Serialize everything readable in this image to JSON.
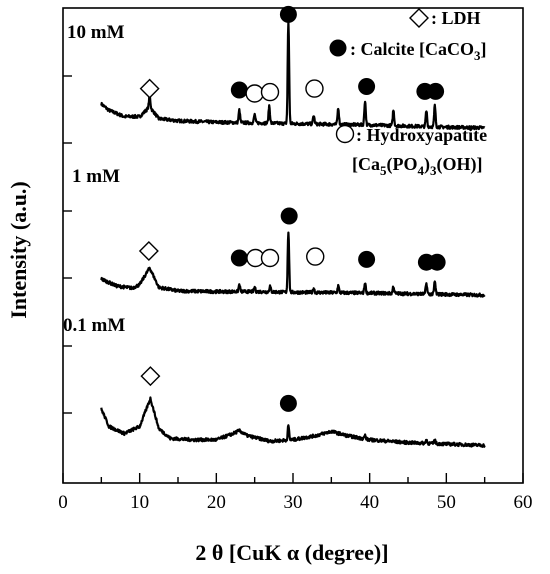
{
  "chart_data": {
    "type": "line",
    "xlabel": "2 θ  [CuK α  (degree)]",
    "ylabel": "Intensity (a.u.)",
    "xlim": [
      0,
      60
    ],
    "x_ticks": [
      "0",
      "10",
      "20",
      "30",
      "40",
      "50",
      "60"
    ],
    "grid": false,
    "legend_position": "top-right, inside plot",
    "legend": {
      "ldh": {
        "symbol": "diamond-open",
        "text": ": LDH"
      },
      "calcite": {
        "symbol": "circle-filled",
        "text": ": Calcite [CaCO",
        "sub": "3",
        "end": "]"
      },
      "hap": {
        "symbol": "circle-open",
        "text": ": Hydroxyapatite"
      },
      "hap_formula": {
        "p1": "[Ca",
        "s1": "5",
        "p2": "(PO",
        "s2": "4",
        "p3": ")",
        "s3": "3",
        "p4": "(OH)]"
      }
    },
    "series": [
      {
        "name": "10 mM",
        "baseline": [
          [
            5,
            0.3
          ],
          [
            6,
            0.21
          ],
          [
            8,
            0.12
          ],
          [
            10,
            0.12
          ],
          [
            11.3,
            0.26
          ],
          [
            12.5,
            0.09
          ],
          [
            15,
            0.06
          ],
          [
            20,
            0.04
          ],
          [
            25,
            0.03
          ],
          [
            30,
            0.02
          ],
          [
            40,
            0.0
          ],
          [
            50,
            -0.03
          ],
          [
            55,
            -0.04
          ]
        ],
        "peaks": [
          [
            11.3,
            0.16
          ],
          [
            23.0,
            0.18
          ],
          [
            25.0,
            0.12
          ],
          [
            26.9,
            0.25
          ],
          [
            29.4,
            1.45
          ],
          [
            32.7,
            0.12
          ],
          [
            35.9,
            0.24
          ],
          [
            39.4,
            0.35
          ],
          [
            43.1,
            0.22
          ],
          [
            47.4,
            0.22
          ],
          [
            48.5,
            0.3
          ]
        ],
        "markers": [
          [
            "diamond-open",
            11.3,
            0.52
          ],
          [
            "circle-filled",
            23.0,
            0.5
          ],
          [
            "circle-open",
            25.0,
            0.45
          ],
          [
            "circle-open",
            27.0,
            0.47
          ],
          [
            "circle-filled",
            29.4,
            1.58
          ],
          [
            "circle-open",
            32.8,
            0.52
          ],
          [
            "circle-filled",
            39.6,
            0.55
          ],
          [
            "circle-filled",
            47.2,
            0.48
          ],
          [
            "circle-filled",
            48.6,
            0.48
          ]
        ]
      },
      {
        "name": "1 mM",
        "baseline": [
          [
            5,
            0.2
          ],
          [
            7,
            0.1
          ],
          [
            9,
            0.07
          ],
          [
            10,
            0.12
          ],
          [
            11.3,
            0.36
          ],
          [
            12.5,
            0.08
          ],
          [
            15,
            0.03
          ],
          [
            20,
            0.02
          ],
          [
            25,
            0.02
          ],
          [
            30,
            0.01
          ],
          [
            40,
            0.0
          ],
          [
            50,
            -0.02
          ],
          [
            55,
            -0.03
          ]
        ],
        "peaks": [
          [
            23.0,
            0.1
          ],
          [
            25.0,
            0.06
          ],
          [
            27.0,
            0.08
          ],
          [
            29.4,
            0.87
          ],
          [
            32.7,
            0.06
          ],
          [
            35.9,
            0.1
          ],
          [
            39.4,
            0.15
          ],
          [
            43.1,
            0.1
          ],
          [
            47.4,
            0.15
          ],
          [
            48.5,
            0.18
          ]
        ],
        "markers": [
          [
            "diamond-open",
            11.2,
            0.6
          ],
          [
            "circle-filled",
            23.0,
            0.5
          ],
          [
            "circle-open",
            25.1,
            0.5
          ],
          [
            "circle-open",
            27.0,
            0.5
          ],
          [
            "circle-filled",
            29.5,
            1.1
          ],
          [
            "circle-open",
            32.9,
            0.52
          ],
          [
            "circle-filled",
            39.6,
            0.48
          ],
          [
            "circle-filled",
            47.4,
            0.44
          ],
          [
            "circle-filled",
            48.8,
            0.44
          ]
        ]
      },
      {
        "name": "0.1 mM",
        "baseline": [
          [
            5,
            0.5
          ],
          [
            6,
            0.25
          ],
          [
            8,
            0.15
          ],
          [
            10,
            0.25
          ],
          [
            11.4,
            0.65
          ],
          [
            12.5,
            0.22
          ],
          [
            14,
            0.08
          ],
          [
            17,
            0.06
          ],
          [
            20,
            0.06
          ],
          [
            22,
            0.14
          ],
          [
            23,
            0.19
          ],
          [
            24,
            0.12
          ],
          [
            27,
            0.04
          ],
          [
            30,
            0.06
          ],
          [
            33,
            0.12
          ],
          [
            35,
            0.18
          ],
          [
            37,
            0.12
          ],
          [
            40,
            0.06
          ],
          [
            45,
            0.02
          ],
          [
            50,
            0.0
          ],
          [
            55,
            -0.02
          ]
        ],
        "peaks": [
          [
            29.4,
            0.2
          ],
          [
            39.4,
            0.05
          ],
          [
            47.4,
            0.05
          ],
          [
            48.5,
            0.05
          ]
        ],
        "markers": [
          [
            "diamond-open",
            11.4,
            0.97
          ],
          [
            "circle-filled",
            29.4,
            0.58
          ]
        ]
      }
    ]
  }
}
